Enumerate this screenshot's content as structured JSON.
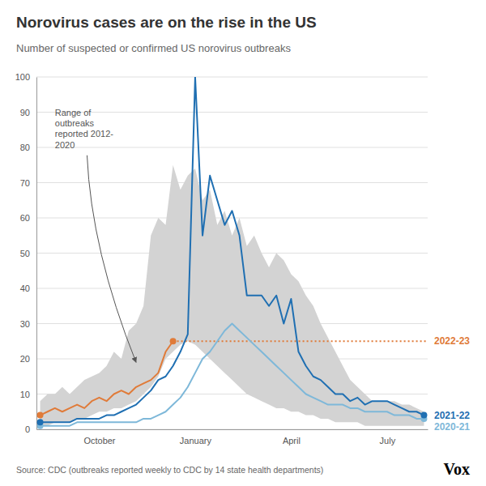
{
  "chart_data": {
    "type": "line",
    "title": "Norovirus cases are on the rise in the US",
    "subtitle": "Number of suspected or confirmed US norovirus outbreaks",
    "source": "Source: CDC (outbreaks reported weekly to CDC by 14 state health departments)",
    "logo": "Vox",
    "categories": [
      null,
      null,
      null,
      null,
      null,
      null,
      null,
      null,
      "October",
      null,
      null,
      null,
      null,
      null,
      null,
      null,
      null,
      null,
      null,
      null,
      null,
      "January",
      null,
      null,
      null,
      null,
      null,
      null,
      null,
      null,
      null,
      null,
      null,
      null,
      "April",
      null,
      null,
      null,
      null,
      null,
      null,
      null,
      null,
      null,
      null,
      null,
      null,
      "July",
      null,
      null,
      null,
      null,
      null
    ],
    "ylim": [
      0,
      100
    ],
    "yticks": [
      0,
      10,
      20,
      30,
      40,
      50,
      60,
      70,
      80,
      90,
      100
    ],
    "grid": true,
    "series": [
      {
        "type": "area",
        "color": "#d3d3d3",
        "lower": [
          1,
          1,
          2,
          2,
          2,
          3,
          3,
          4,
          5,
          5,
          6,
          6,
          7,
          8,
          10,
          12,
          15,
          20,
          22,
          24,
          25,
          24,
          22,
          20,
          18,
          16,
          14,
          12,
          10,
          9,
          8,
          7,
          6,
          6,
          5,
          5,
          4,
          4,
          3,
          3,
          2,
          2,
          2,
          2,
          1,
          1,
          1,
          1,
          1,
          1,
          1,
          1,
          1
        ],
        "upper": [
          8,
          10,
          10,
          12,
          10,
          12,
          14,
          15,
          16,
          18,
          22,
          20,
          28,
          30,
          35,
          55,
          60,
          58,
          75,
          68,
          72,
          74,
          65,
          68,
          58,
          62,
          55,
          60,
          52,
          55,
          50,
          46,
          50,
          48,
          44,
          42,
          38,
          35,
          30,
          26,
          22,
          18,
          14,
          12,
          10,
          8,
          8,
          8,
          8,
          7,
          7,
          6,
          5
        ]
      },
      {
        "name": "2020-21",
        "type": "line",
        "color": "#7eb8d9",
        "marker": "endpoints",
        "values": [
          1,
          1,
          1,
          1,
          1,
          2,
          2,
          2,
          2,
          2,
          2,
          2,
          2,
          2,
          3,
          3,
          4,
          5,
          7,
          9,
          12,
          16,
          20,
          22,
          25,
          28,
          30,
          28,
          26,
          24,
          22,
          20,
          18,
          16,
          14,
          12,
          10,
          9,
          8,
          7,
          7,
          7,
          6,
          6,
          5,
          5,
          5,
          5,
          4,
          4,
          4,
          3,
          3
        ]
      },
      {
        "name": "2021-22",
        "type": "line",
        "color": "#1f6fb2",
        "marker": "endpoints",
        "values": [
          2,
          2,
          2,
          2,
          2,
          3,
          3,
          3,
          3,
          4,
          4,
          5,
          6,
          7,
          9,
          11,
          14,
          15,
          18,
          22,
          27,
          100,
          55,
          72,
          65,
          58,
          62,
          55,
          38,
          38,
          38,
          35,
          38,
          30,
          37,
          22,
          18,
          15,
          14,
          12,
          10,
          10,
          8,
          9,
          7,
          8,
          8,
          8,
          7,
          6,
          5,
          5,
          4
        ]
      },
      {
        "name": "2022-23",
        "type": "line",
        "color": "#e07b39",
        "marker": "endpoints",
        "values": [
          4,
          5,
          6,
          5,
          6,
          7,
          6,
          8,
          9,
          8,
          10,
          11,
          10,
          12,
          13,
          14,
          16,
          22,
          25,
          null,
          null,
          null,
          null,
          null,
          null,
          null,
          null,
          null,
          null,
          null,
          null,
          null,
          null,
          null,
          null,
          null,
          null,
          null,
          null,
          null,
          null,
          null,
          null,
          null,
          null,
          null,
          null,
          null,
          null,
          null,
          null,
          null,
          null
        ]
      }
    ],
    "reference_line": {
      "value": 25,
      "color": "#e07b39",
      "line_style": "dotted"
    },
    "annotations": [
      {
        "text": "Range of\noutbreaks\nreported 2012-\n2020"
      }
    ]
  }
}
